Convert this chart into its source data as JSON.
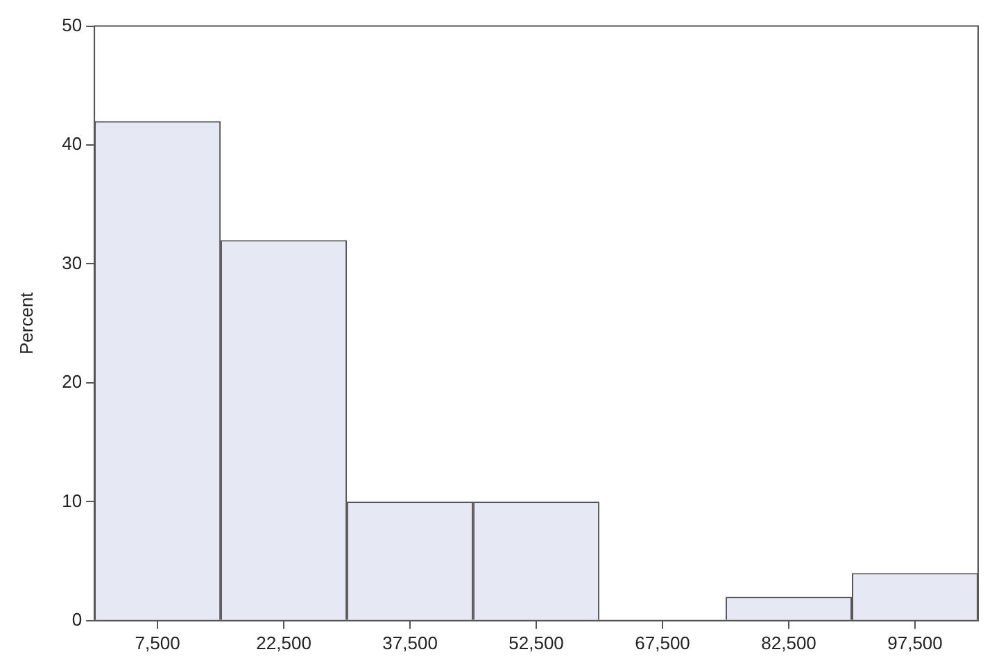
{
  "chart_data": {
    "type": "histogram",
    "ylabel": "Percent",
    "bins": [
      0,
      15000,
      30000,
      45000,
      60000,
      75000,
      90000,
      105000
    ],
    "values": [
      42,
      32,
      10,
      10,
      0,
      2,
      4
    ],
    "color": "#e6e9f3",
    "xlim": [
      0,
      105000
    ],
    "xticks": [
      {
        "value": 7500,
        "label": "7,500"
      },
      {
        "value": 22500,
        "label": "22,500"
      },
      {
        "value": 37500,
        "label": "37,500"
      },
      {
        "value": 52500,
        "label": "52,500"
      },
      {
        "value": 67500,
        "label": "67,500"
      },
      {
        "value": 82500,
        "label": "82,500"
      },
      {
        "value": 97500,
        "label": "97,500"
      }
    ],
    "ylim": [
      0,
      50
    ],
    "yticks": [
      0,
      10,
      20,
      30,
      40,
      50
    ],
    "grid": false
  }
}
